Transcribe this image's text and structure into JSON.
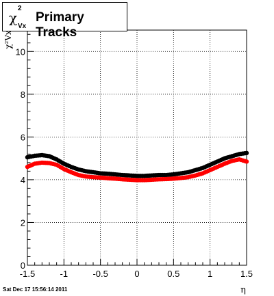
{
  "title": {
    "symbol": "χ",
    "superscript": "2",
    "subscript": "Vx",
    "text": "Primary Tracks"
  },
  "timestamp": "Sat Dec 17 15:56:14 2011",
  "chart_data": {
    "type": "scatter",
    "xlabel": "η",
    "ylabel": "χ²Vx",
    "xlim": [
      -1.5,
      1.5
    ],
    "ylim": [
      0,
      11
    ],
    "x_ticks": [
      "-1.5",
      "-1",
      "-0.5",
      "0",
      "0.5",
      "1",
      "1.5"
    ],
    "y_ticks": [
      "0",
      "2",
      "4",
      "6",
      "8",
      "10"
    ],
    "grid": true,
    "colors": {
      "black_series": "#000000",
      "red_series": "#ff0000"
    },
    "x": [
      -1.5,
      -1.4,
      -1.3,
      -1.2,
      -1.1,
      -1.0,
      -0.9,
      -0.8,
      -0.7,
      -0.6,
      -0.5,
      -0.4,
      -0.3,
      -0.2,
      -0.1,
      0.0,
      0.1,
      0.2,
      0.3,
      0.4,
      0.5,
      0.6,
      0.7,
      0.8,
      0.9,
      1.0,
      1.1,
      1.2,
      1.3,
      1.4,
      1.5
    ],
    "series": [
      {
        "color": "#000000",
        "values": [
          5.05,
          5.12,
          5.15,
          5.1,
          4.95,
          4.75,
          4.6,
          4.48,
          4.4,
          4.35,
          4.3,
          4.28,
          4.25,
          4.22,
          4.2,
          4.18,
          4.18,
          4.2,
          4.22,
          4.22,
          4.25,
          4.3,
          4.35,
          4.45,
          4.55,
          4.7,
          4.85,
          5.0,
          5.1,
          5.2,
          5.25
        ]
      },
      {
        "color": "#ff0000",
        "values": [
          4.6,
          4.75,
          4.8,
          4.78,
          4.7,
          4.5,
          4.35,
          4.22,
          4.15,
          4.12,
          4.1,
          4.07,
          4.05,
          4.02,
          4.0,
          3.98,
          3.98,
          4.0,
          4.02,
          4.03,
          4.05,
          4.08,
          4.12,
          4.2,
          4.3,
          4.45,
          4.6,
          4.75,
          4.88,
          4.95,
          4.85
        ]
      }
    ]
  }
}
